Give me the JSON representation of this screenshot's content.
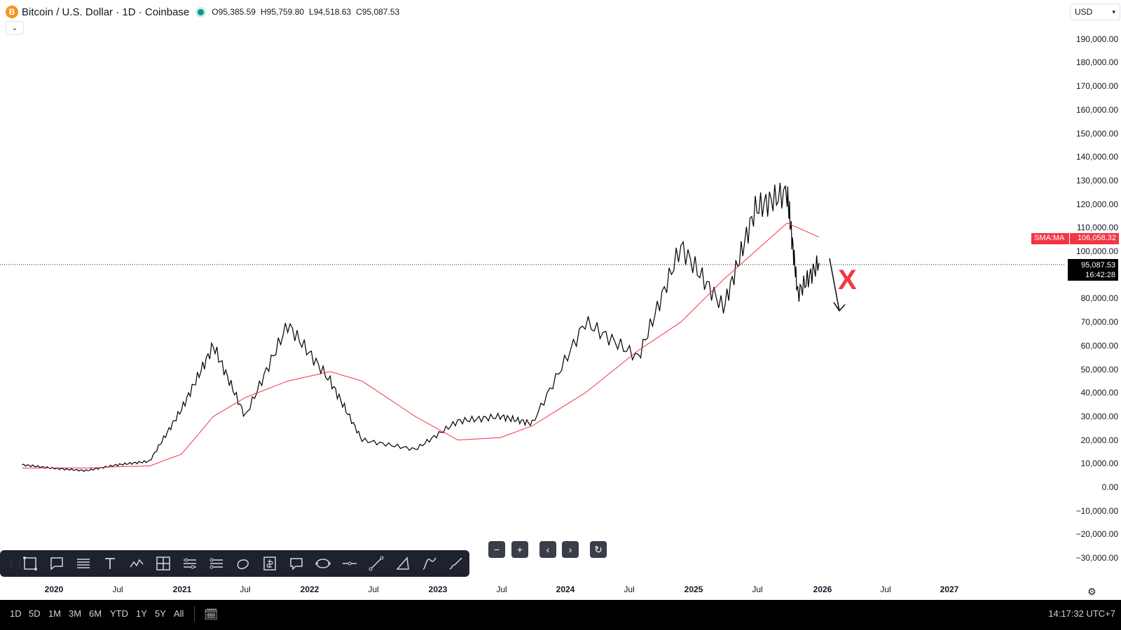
{
  "header": {
    "coin_icon": "bitcoin-icon",
    "coin_letter": "B",
    "title": "Bitcoin / U.S. Dollar · 1D · Coinbase",
    "ohlc": {
      "open": "O95,385.59",
      "high": "H95,759.80",
      "low": "L94,518.63",
      "close": "C95,087.53"
    }
  },
  "currency": {
    "label": "USD"
  },
  "price_axis": {
    "labels": [
      "190,000.00",
      "180,000.00",
      "170,000.00",
      "160,000.00",
      "150,000.00",
      "140,000.00",
      "130,000.00",
      "120,000.00",
      "110,000.00",
      "100,000.00",
      "80,000.00",
      "70,000.00",
      "60,000.00",
      "50,000.00",
      "40,000.00",
      "30,000.00",
      "20,000.00",
      "10,000.00",
      "0.00",
      "−10,000.00",
      "−20,000.00",
      "−30,000.00"
    ]
  },
  "indicator": {
    "name": "SMA:MA",
    "value": "106,058.32",
    "color": "#f23645"
  },
  "last_price": {
    "value": "95,087.53",
    "countdown": "16:42:28"
  },
  "annotation": {
    "mark": "X",
    "color": "#f23645"
  },
  "time_axis": [
    "2020",
    "Jul",
    "2021",
    "Jul",
    "2022",
    "Jul",
    "2023",
    "Jul",
    "2024",
    "Jul",
    "2025",
    "Jul",
    "2026",
    "Jul",
    "2027"
  ],
  "timeframes": [
    "1D",
    "5D",
    "1M",
    "3M",
    "6M",
    "YTD",
    "1Y",
    "5Y",
    "All"
  ],
  "clock": "14:17:32 UTC+7",
  "chart_data": {
    "type": "line",
    "x": [
      "2019-10",
      "2020-01",
      "2020-04",
      "2020-07",
      "2020-10",
      "2021-01",
      "2021-04",
      "2021-07",
      "2021-11",
      "2022-03",
      "2022-06",
      "2022-11",
      "2023-03",
      "2023-07",
      "2023-10",
      "2024-03",
      "2024-08",
      "2024-12",
      "2025-04",
      "2025-07",
      "2025-10",
      "2025-11",
      "2026-01"
    ],
    "series": [
      {
        "name": "Bitcoin / U.S. Dollar",
        "values": [
          9500,
          8000,
          7000,
          9500,
          11000,
          33000,
          60000,
          30000,
          69000,
          45000,
          20000,
          16000,
          28000,
          30000,
          27000,
          70000,
          55000,
          102000,
          76000,
          118000,
          125000,
          82000,
          95087.53
        ]
      },
      {
        "name": "SMA:MA",
        "values": [
          8000,
          8200,
          8100,
          8700,
          9000,
          14000,
          30000,
          38000,
          45000,
          49000,
          45000,
          30000,
          20000,
          21000,
          26000,
          40000,
          58000,
          70000,
          88000,
          100000,
          112000,
          110000,
          106058.32
        ]
      }
    ],
    "ylim": [
      -30000,
      190000
    ]
  }
}
